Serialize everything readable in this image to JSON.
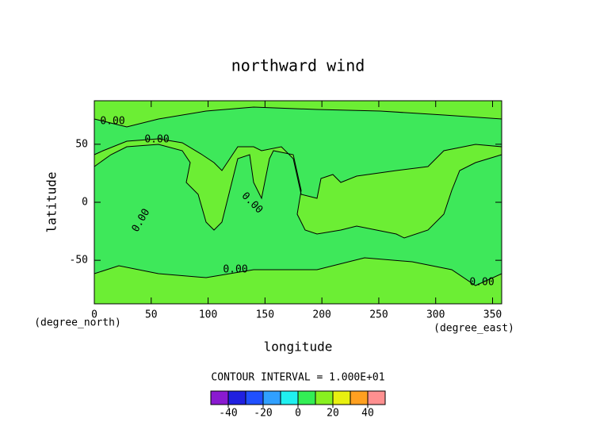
{
  "chart_data": {
    "type": "contour",
    "title": "northward wind",
    "xlabel": "longitude",
    "ylabel": "latitude",
    "xunit": "(degree_east)",
    "yunit": "(degree_north)",
    "xlim": [
      0,
      358
    ],
    "ylim": [
      -87.5,
      87.5
    ],
    "xticks": [
      0,
      50,
      100,
      150,
      200,
      250,
      300,
      350
    ],
    "yticks": [
      -50,
      0,
      50
    ],
    "contour_labels": [
      "0.00",
      "0.00",
      "0.00",
      "0.00",
      "0.00",
      "0.00"
    ],
    "interval_note": "CONTOUR INTERVAL = 1.000E+01",
    "colorbar": {
      "levels": [
        -50,
        -40,
        -30,
        -20,
        -10,
        0,
        10,
        20,
        30,
        40,
        50
      ],
      "colors": [
        "#8a1ad0",
        "#2020e0",
        "#2050ff",
        "#30a0ff",
        "#20f0f0",
        "#33ee55",
        "#88f020",
        "#e8f010",
        "#ffa020",
        "#ff9090"
      ],
      "ticks": [
        -40,
        -20,
        0,
        20,
        40
      ]
    }
  }
}
